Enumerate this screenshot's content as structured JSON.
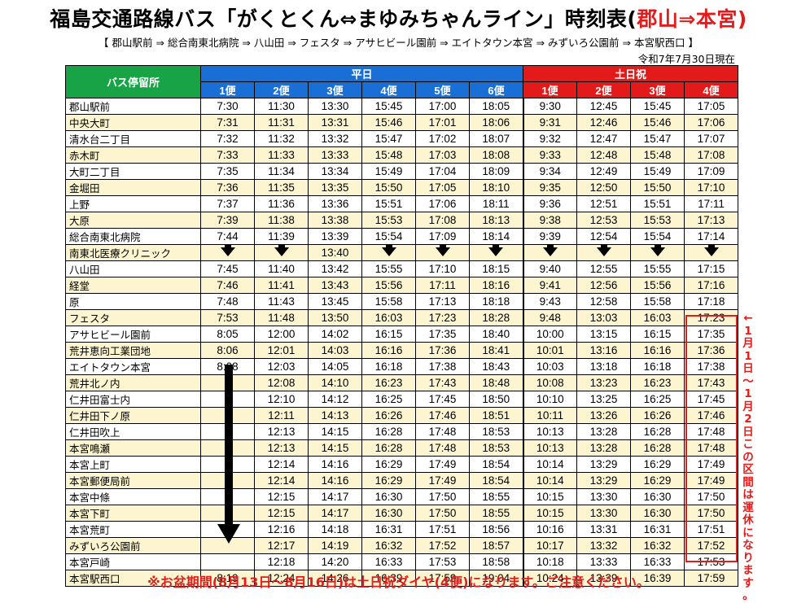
{
  "title": {
    "main": "福島交通路線バス「がくとくん⇔まゆみちゃんライン」時刻表(",
    "highlight": "郡山⇒本宮",
    "end": ")"
  },
  "route": "【 郡山駅前 ⇒ 総合南東北病院 ⇒ 八山田 ⇒ フェスタ ⇒ アサヒビール園前 ⇒ エイトタウン本宮 ⇒ みずいろ公園前 ⇒ 本宮駅西口 】",
  "as_of": "令和7年7月30日現在",
  "table": {
    "stop_header": "バス停留所",
    "weekday_label": "平日",
    "weekend_label": "土日祝",
    "weekday_runs": [
      "1便",
      "2便",
      "3便",
      "4便",
      "5便",
      "6便"
    ],
    "weekend_runs": [
      "1便",
      "2便",
      "3便",
      "4便"
    ],
    "rows": [
      {
        "stop": "郡山駅前",
        "times": [
          "7:30",
          "11:30",
          "13:30",
          "15:45",
          "17:00",
          "18:05",
          "9:30",
          "12:45",
          "15:45",
          "17:05"
        ]
      },
      {
        "stop": "中央大町",
        "times": [
          "7:31",
          "11:31",
          "13:31",
          "15:46",
          "17:01",
          "18:06",
          "9:31",
          "12:46",
          "15:46",
          "17:06"
        ]
      },
      {
        "stop": "清水台二丁目",
        "times": [
          "7:32",
          "11:32",
          "13:32",
          "15:47",
          "17:02",
          "18:07",
          "9:32",
          "12:47",
          "15:47",
          "17:07"
        ]
      },
      {
        "stop": "赤木町",
        "times": [
          "7:33",
          "11:33",
          "13:33",
          "15:48",
          "17:03",
          "18:08",
          "9:33",
          "12:48",
          "15:48",
          "17:08"
        ]
      },
      {
        "stop": "大町二丁目",
        "times": [
          "7:35",
          "11:34",
          "13:34",
          "15:49",
          "17:04",
          "18:09",
          "9:34",
          "12:49",
          "15:49",
          "17:09"
        ]
      },
      {
        "stop": "金堀田",
        "times": [
          "7:36",
          "11:35",
          "13:35",
          "15:50",
          "17:05",
          "18:10",
          "9:35",
          "12:50",
          "15:50",
          "17:10"
        ]
      },
      {
        "stop": "上野",
        "times": [
          "7:37",
          "11:36",
          "13:36",
          "15:51",
          "17:06",
          "18:11",
          "9:36",
          "12:51",
          "15:51",
          "17:11"
        ]
      },
      {
        "stop": "大原",
        "times": [
          "7:39",
          "11:38",
          "13:38",
          "15:53",
          "17:08",
          "18:13",
          "9:38",
          "12:53",
          "15:53",
          "17:13"
        ]
      },
      {
        "stop": "総合南東北病院",
        "times": [
          "7:44",
          "11:39",
          "13:39",
          "15:54",
          "17:09",
          "18:14",
          "9:39",
          "12:54",
          "15:54",
          "17:14"
        ]
      },
      {
        "stop": "南東北医療クリニック",
        "times": [
          "↓",
          "↓",
          "13:40",
          "↓",
          "↓",
          "↓",
          "↓",
          "↓",
          "↓",
          "↓"
        ]
      },
      {
        "stop": "八山田",
        "times": [
          "7:45",
          "11:40",
          "13:42",
          "15:55",
          "17:10",
          "18:15",
          "9:40",
          "12:55",
          "15:55",
          "17:15"
        ]
      },
      {
        "stop": "経堂",
        "times": [
          "7:46",
          "11:41",
          "13:43",
          "15:56",
          "17:11",
          "18:16",
          "9:41",
          "12:56",
          "15:56",
          "17:16"
        ]
      },
      {
        "stop": "原",
        "times": [
          "7:48",
          "11:43",
          "13:45",
          "15:58",
          "17:13",
          "18:18",
          "9:43",
          "12:58",
          "15:58",
          "17:18"
        ]
      },
      {
        "stop": "フェスタ",
        "times": [
          "7:53",
          "11:48",
          "13:50",
          "16:03",
          "17:23",
          "18:28",
          "9:48",
          "13:03",
          "16:03",
          "17:23"
        ]
      },
      {
        "stop": "アサヒビール園前",
        "times": [
          "8:05",
          "12:00",
          "14:02",
          "16:15",
          "17:35",
          "18:40",
          "10:00",
          "13:15",
          "16:15",
          "17:35"
        ]
      },
      {
        "stop": "荒井恵向工業団地",
        "times": [
          "8:06",
          "12:01",
          "14:03",
          "16:16",
          "17:36",
          "18:41",
          "10:01",
          "13:16",
          "16:16",
          "17:36"
        ]
      },
      {
        "stop": "エイトタウン本宮",
        "times": [
          "8:08",
          "12:03",
          "14:05",
          "16:18",
          "17:38",
          "18:43",
          "10:03",
          "13:18",
          "16:18",
          "17:38"
        ]
      },
      {
        "stop": "荒井北ノ内",
        "times": [
          "",
          "12:08",
          "14:10",
          "16:23",
          "17:43",
          "18:48",
          "10:08",
          "13:23",
          "16:23",
          "17:43"
        ]
      },
      {
        "stop": "仁井田富士内",
        "times": [
          "",
          "12:10",
          "14:12",
          "16:25",
          "17:45",
          "18:50",
          "10:10",
          "13:25",
          "16:25",
          "17:45"
        ]
      },
      {
        "stop": "仁井田下ノ原",
        "times": [
          "",
          "12:11",
          "14:13",
          "16:26",
          "17:46",
          "18:51",
          "10:11",
          "13:26",
          "16:26",
          "17:46"
        ]
      },
      {
        "stop": "仁井田吹上",
        "times": [
          "",
          "12:13",
          "14:15",
          "16:28",
          "17:48",
          "18:53",
          "10:13",
          "13:28",
          "16:28",
          "17:48"
        ]
      },
      {
        "stop": "本宮鳴瀬",
        "times": [
          "",
          "12:13",
          "14:15",
          "16:28",
          "17:48",
          "18:53",
          "10:13",
          "13:28",
          "16:28",
          "17:48"
        ]
      },
      {
        "stop": "本宮上町",
        "times": [
          "",
          "12:14",
          "14:16",
          "16:29",
          "17:49",
          "18:54",
          "10:14",
          "13:29",
          "16:29",
          "17:49"
        ]
      },
      {
        "stop": "本宮郵便局前",
        "times": [
          "",
          "12:14",
          "14:16",
          "16:29",
          "17:49",
          "18:54",
          "10:14",
          "13:29",
          "16:29",
          "17:49"
        ]
      },
      {
        "stop": "本宮中條",
        "times": [
          "",
          "12:15",
          "14:17",
          "16:30",
          "17:50",
          "18:55",
          "10:15",
          "13:30",
          "16:30",
          "17:50"
        ]
      },
      {
        "stop": "本宮下町",
        "times": [
          "",
          "12:15",
          "14:17",
          "16:30",
          "17:50",
          "18:55",
          "10:15",
          "13:30",
          "16:30",
          "17:50"
        ]
      },
      {
        "stop": "本宮荒町",
        "times": [
          "",
          "12:16",
          "14:18",
          "16:31",
          "17:51",
          "18:56",
          "10:16",
          "13:31",
          "16:31",
          "17:51"
        ]
      },
      {
        "stop": "みずいろ公園前",
        "times": [
          "",
          "12:17",
          "14:19",
          "16:32",
          "17:52",
          "18:57",
          "10:17",
          "13:32",
          "16:32",
          "17:52"
        ]
      },
      {
        "stop": "本宮戸崎",
        "times": [
          "",
          "12:18",
          "14:20",
          "16:33",
          "17:53",
          "18:58",
          "10:18",
          "13:33",
          "16:33",
          "17:53"
        ]
      },
      {
        "stop": "本宮駅西口",
        "times": [
          "8:19",
          "12:24",
          "14:26",
          "16:39",
          "17:59",
          "19:04",
          "10:24",
          "13:39",
          "16:39",
          "17:59"
        ]
      }
    ]
  },
  "closure_note": [
    "←",
    "1",
    "月",
    "1",
    "日",
    "～",
    "1",
    "月",
    "2",
    "日",
    "こ",
    "の",
    "区",
    "間",
    "は",
    "運",
    "休",
    "に",
    "な",
    "り",
    "ま",
    "す",
    "。"
  ],
  "footnote": "※お盆期間(8月13日～8月16日)は土日祝ダイヤ(4便)になります。ご注意ください。",
  "colors": {
    "stop_header": "#18a446",
    "weekday": "#1a6fd6",
    "weekend": "#e21a1a",
    "accent": "#e31b1b",
    "alt_row": "#fdf5cf"
  }
}
